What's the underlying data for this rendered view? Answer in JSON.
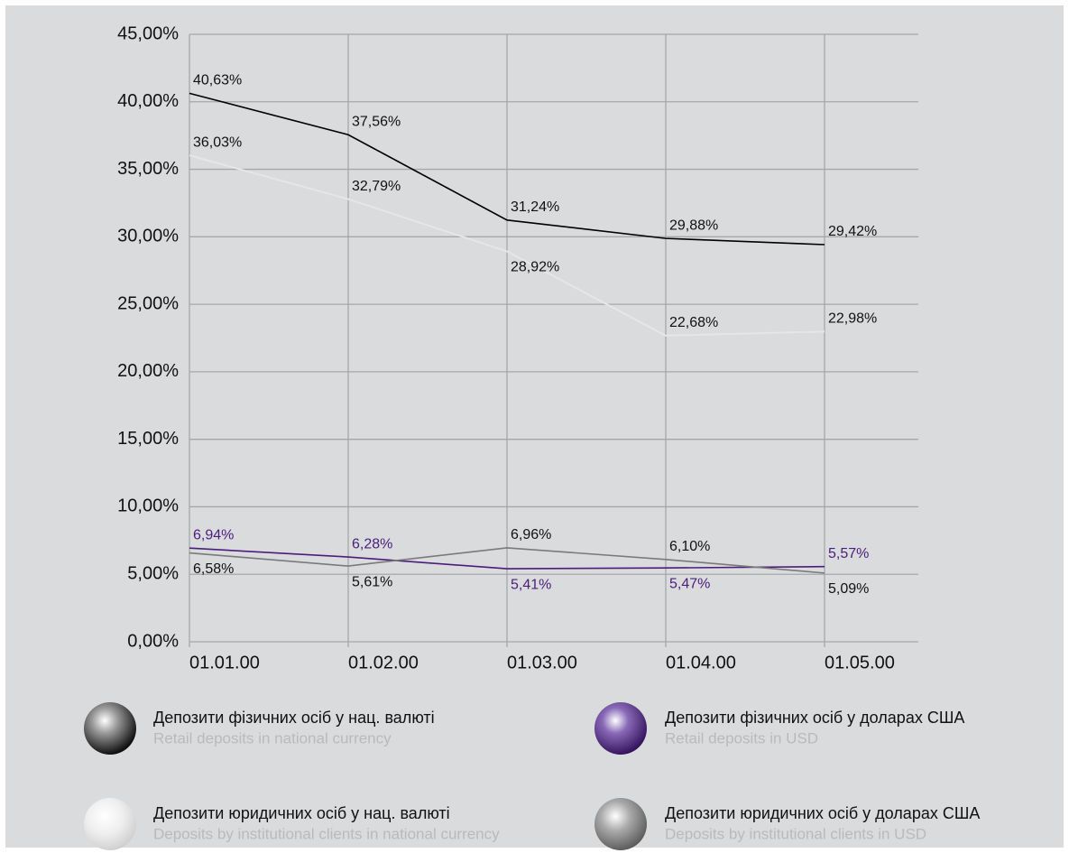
{
  "chart_data": {
    "type": "line",
    "categories": [
      "01.01.00",
      "01.02.00",
      "01.03.00",
      "01.04.00",
      "01.05.00"
    ],
    "series": [
      {
        "name": "Депозити фізичних осіб у нац. валюті",
        "name_en": "Retail deposits in national currency",
        "color": "#000000",
        "values": [
          40.63,
          37.56,
          31.24,
          29.88,
          29.42
        ],
        "value_labels": [
          "40,63%",
          "37,56%",
          "31,24%",
          "29,88%",
          "29,42%"
        ]
      },
      {
        "name": "Депозити фізичних осіб у доларах США",
        "name_en": "Retail deposits in USD",
        "color": "#4b1d7d",
        "values": [
          6.94,
          6.28,
          5.41,
          5.47,
          5.57
        ],
        "value_labels": [
          "6,94%",
          "6,28%",
          "5,41%",
          "5,47%",
          "5,57%"
        ]
      },
      {
        "name": "Депозити юридичних осіб у нац. валюті",
        "name_en": "Deposits by institutional clients in national currency",
        "color": "#e6e6e6",
        "values": [
          36.03,
          32.79,
          28.92,
          22.68,
          22.98
        ],
        "value_labels": [
          "36,03%",
          "32,79%",
          "28,92%",
          "22,68%",
          "22,98%"
        ]
      },
      {
        "name": "Депозити юридичних осіб у доларах США",
        "name_en": "Deposits by institutional clients in USD",
        "color": "#7a7a7a",
        "values": [
          6.58,
          5.61,
          6.96,
          6.1,
          5.09
        ],
        "value_labels": [
          "6,58%",
          "5,61%",
          "6,96%",
          "6,10%",
          "5,09%"
        ]
      }
    ],
    "ylim": [
      0,
      45
    ],
    "yticks": [
      {
        "value": 0,
        "label": "0,00%"
      },
      {
        "value": 5,
        "label": "5,00%"
      },
      {
        "value": 10,
        "label": "10,00%"
      },
      {
        "value": 15,
        "label": "15,00%"
      },
      {
        "value": 20,
        "label": "20,00%"
      },
      {
        "value": 25,
        "label": "25,00%"
      },
      {
        "value": 30,
        "label": "30,00%"
      },
      {
        "value": 35,
        "label": "35,00%"
      },
      {
        "value": 40,
        "label": "40,00%"
      },
      {
        "value": 45,
        "label": "45,00%"
      }
    ],
    "grid": true
  }
}
